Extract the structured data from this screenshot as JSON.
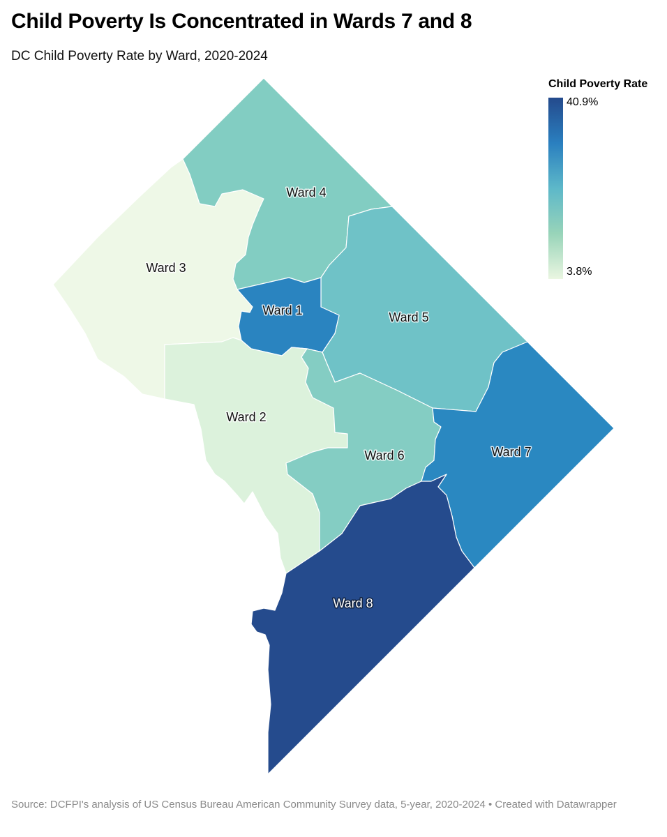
{
  "header": {
    "title": "Child Poverty Is Concentrated in Wards 7 and 8",
    "subtitle": "DC Child Poverty Rate by Ward, 2020-2024"
  },
  "legend": {
    "title": "Child Poverty Rate",
    "max_label": "40.9%",
    "min_label": "3.8%",
    "min_value": 3.8,
    "max_value": 40.9,
    "color_scale": [
      "#eaf6e1",
      "#98d4b9",
      "#5db8c9",
      "#2a7fbf",
      "#244a8c"
    ]
  },
  "map": {
    "wards": [
      {
        "label": "Ward 1",
        "color": "#2a84c0"
      },
      {
        "label": "Ward 2",
        "color": "#dcf2dc"
      },
      {
        "label": "Ward 3",
        "color": "#eef8e7"
      },
      {
        "label": "Ward 4",
        "color": "#82cdc2"
      },
      {
        "label": "Ward 5",
        "color": "#6fc2c7"
      },
      {
        "label": "Ward 6",
        "color": "#84cdc3"
      },
      {
        "label": "Ward 7",
        "color": "#2a88c1"
      },
      {
        "label": "Ward 8",
        "color": "#254b8d"
      }
    ]
  },
  "footer": {
    "source": "Source: DCFPI's analysis of US Census Bureau American Community Survey data, 5-year, 2020-2024 • Created with Datawrapper"
  }
}
